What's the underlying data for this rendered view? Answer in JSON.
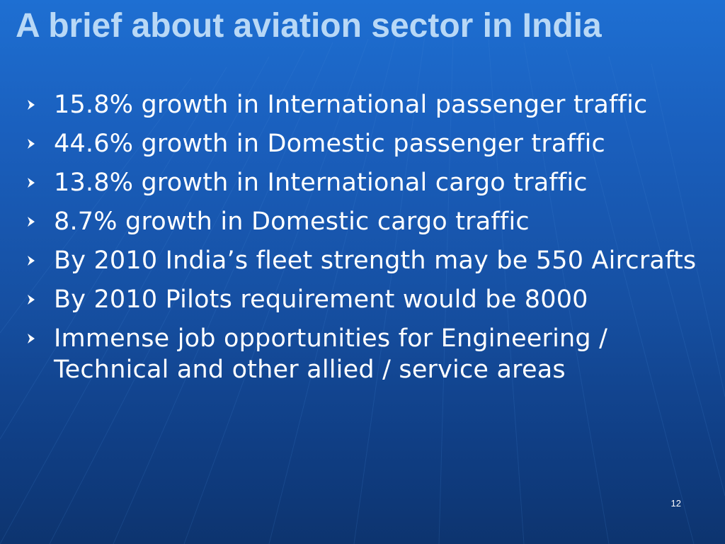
{
  "slide": {
    "title": "A brief about aviation sector in India",
    "bullets": [
      "15.8% growth in International passenger traffic",
      "44.6% growth in Domestic passenger traffic",
      "13.8% growth in International cargo traffic",
      "8.7% growth in Domestic cargo traffic",
      "By 2010 India’s fleet strength may be 550 Aircrafts",
      "By 2010 Pilots requirement would be 8000",
      "Immense job opportunities for Engineering / Technical and other allied / service areas"
    ],
    "page_number": "12",
    "bullet_icon": "arrowhead-bullet-icon"
  },
  "colors": {
    "title": "#b8d8f6",
    "body_text": "#ffffff",
    "background_top": "#1e6fd2",
    "background_bottom": "#0d346f"
  }
}
